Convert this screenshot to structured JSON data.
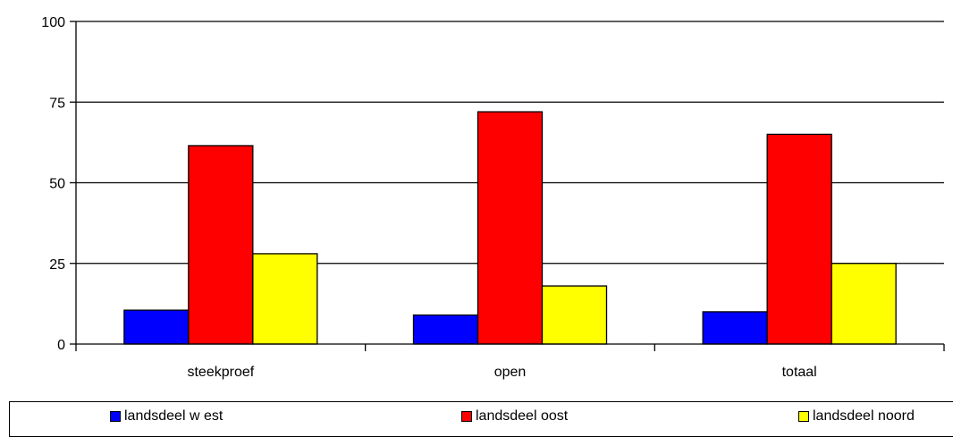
{
  "chart_data": {
    "type": "bar",
    "categories": [
      "steekproef",
      "open",
      "totaal"
    ],
    "series": [
      {
        "name": "landsdeel w est",
        "values": [
          10.5,
          9,
          10
        ],
        "color": "#0000ff"
      },
      {
        "name": "landsdeel oost",
        "values": [
          61.5,
          72,
          65
        ],
        "color": "#ff0000"
      },
      {
        "name": "landsdeel noord",
        "values": [
          28,
          18,
          25
        ],
        "color": "#ffff00"
      }
    ],
    "ylim": [
      0,
      100
    ],
    "yticks": [
      0,
      25,
      50,
      75,
      100
    ],
    "grid": true,
    "legend_position": "bottom",
    "title": "",
    "xlabel": "",
    "ylabel": ""
  }
}
